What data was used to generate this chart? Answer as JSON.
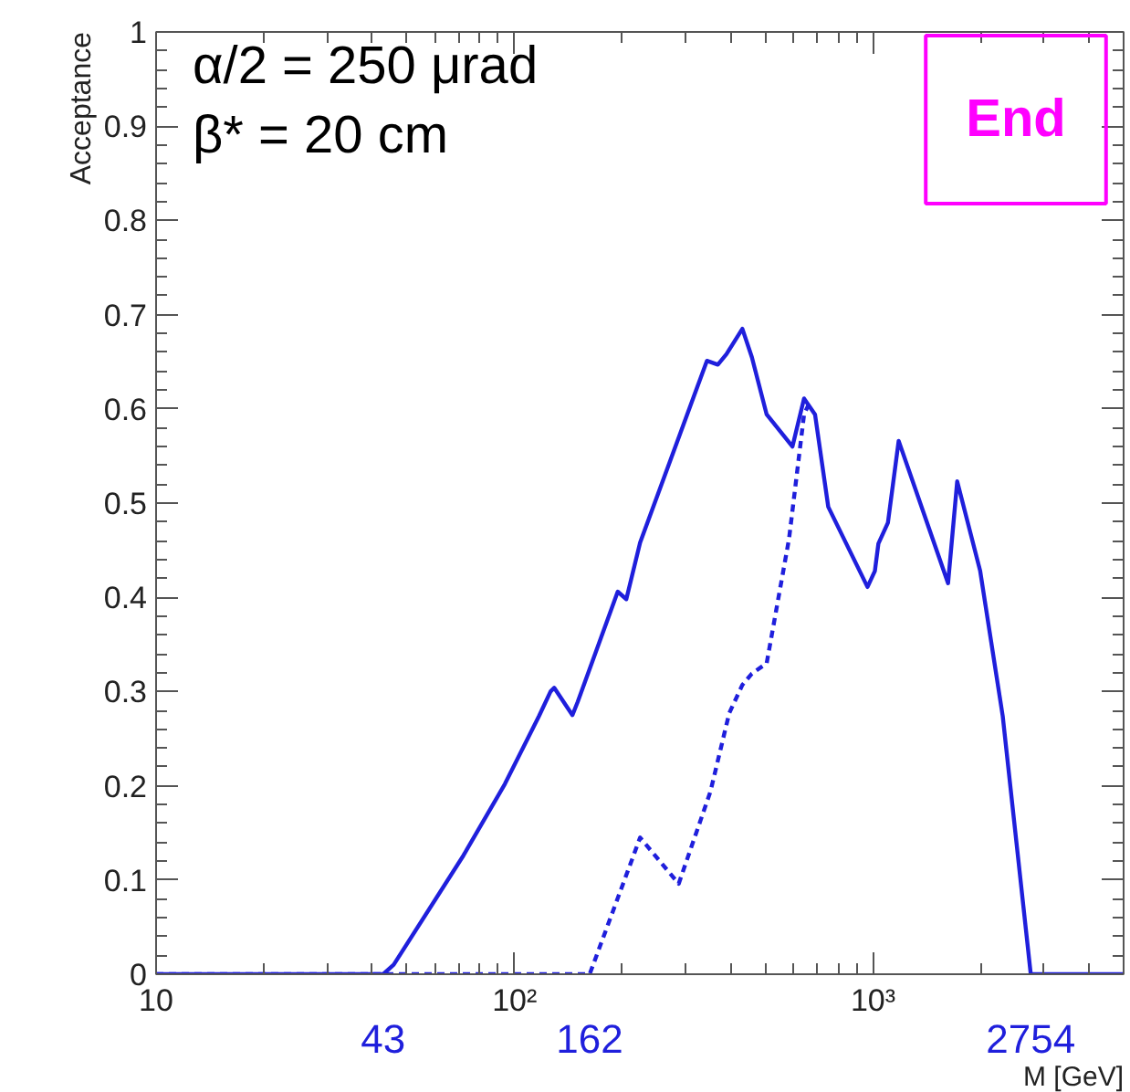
{
  "chart_data": {
    "type": "line",
    "xlabel": "M [GeV]",
    "ylabel": "Acceptance",
    "log": "x",
    "xlim": [
      10,
      5000
    ],
    "ylim": [
      0,
      1
    ],
    "xticks": [
      10,
      {
        "value": 100,
        "label": "10²"
      },
      {
        "value": 1000,
        "label": "10³"
      }
    ],
    "yticks": [
      0,
      0.1,
      0.2,
      0.3,
      0.4,
      0.5,
      0.6,
      0.7,
      0.8,
      0.9,
      1
    ],
    "series": [
      {
        "color": "#1f1fdc",
        "line_style": "solid",
        "x": [
          10,
          43,
          46,
          72,
          94,
          117,
          126,
          129,
          145,
          150,
          194,
          205,
          224,
          344,
          369,
          390,
          432,
          459,
          505,
          596,
          642,
          689,
          750,
          965,
          1012,
          1035,
          1100,
          1179,
          1619,
          1717,
          1990,
          2300,
          2754,
          5000
        ],
        "values": [
          0,
          0,
          0.01,
          0.126,
          0.202,
          0.274,
          0.3,
          0.304,
          0.275,
          0.289,
          0.406,
          0.398,
          0.458,
          0.651,
          0.647,
          0.658,
          0.685,
          0.655,
          0.594,
          0.56,
          0.611,
          0.594,
          0.496,
          0.411,
          0.428,
          0.457,
          0.479,
          0.566,
          0.415,
          0.523,
          0.428,
          0.274,
          0,
          0
        ]
      },
      {
        "color": "#1f1fdc",
        "line_style": "dashed",
        "x": [
          10,
          162,
          224,
          287,
          352,
          397,
          432,
          459,
          505,
          583,
          642,
          660
        ],
        "values": [
          0,
          0,
          0.145,
          0.096,
          0.194,
          0.277,
          0.307,
          0.319,
          0.33,
          0.462,
          0.594,
          0.604
        ]
      }
    ],
    "annotations": [
      "α/2 = 250 μrad",
      "β* = 20 cm",
      "End",
      {
        "text": "43",
        "x": 43,
        "y": 0
      },
      {
        "text": "162",
        "x": 162,
        "y": 0
      },
      {
        "text": "2754",
        "x": 2754,
        "y": 0
      }
    ]
  }
}
